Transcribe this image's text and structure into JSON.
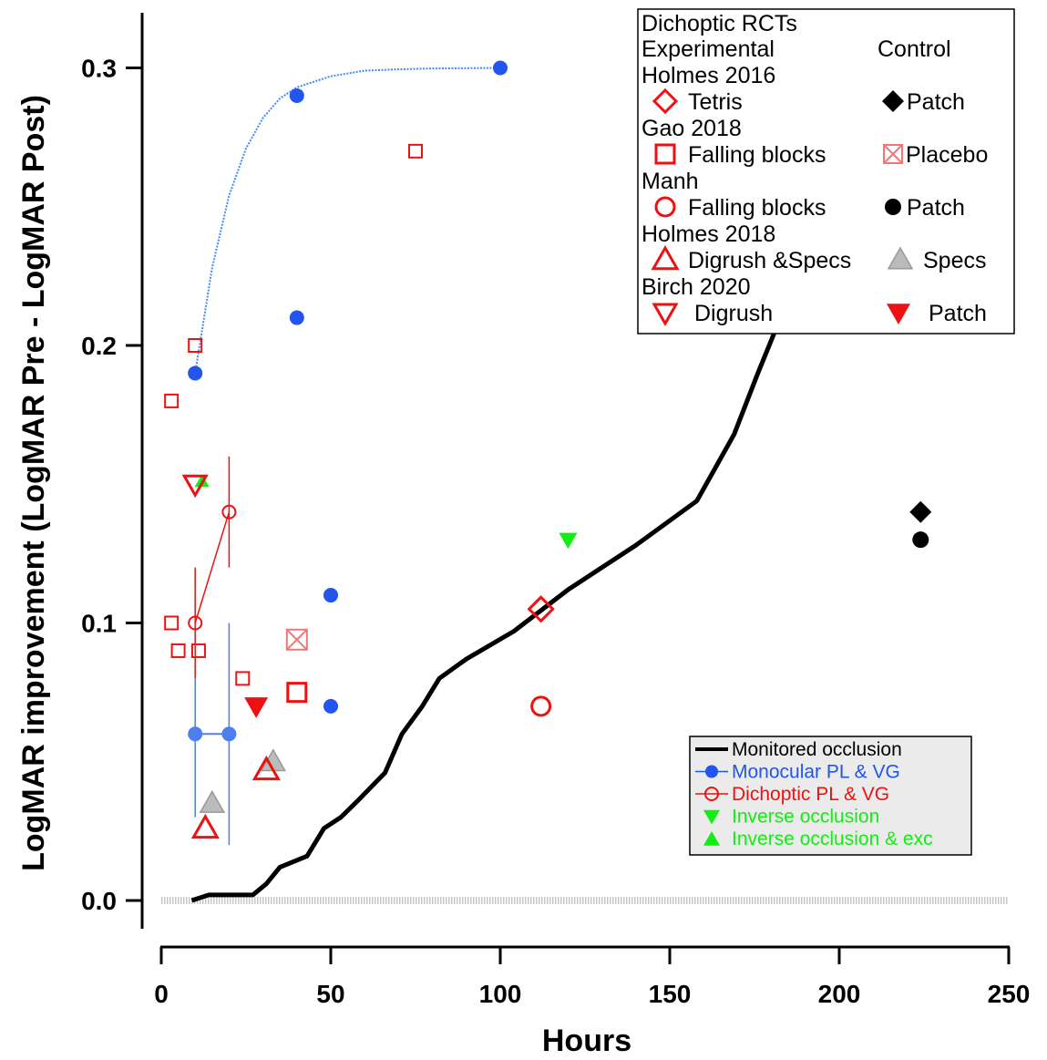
{
  "chart_data": {
    "type": "scatter",
    "xlabel": "Hours",
    "ylabel": "LogMAR improvement (LogMAR Pre - LogMAR Post)",
    "xlim": [
      0,
      250
    ],
    "ylim": [
      -0.01,
      0.32
    ],
    "x_ticks": [
      "0",
      "50",
      "100",
      "150",
      "200",
      "250"
    ],
    "x_tick_values": [
      0,
      50,
      100,
      150,
      200,
      250
    ],
    "y_ticks": [
      "0.0",
      "0.1",
      "0.2",
      "0.3"
    ],
    "y_tick_values": [
      0.0,
      0.1,
      0.2,
      0.3
    ],
    "colors": {
      "red": "#ee1111",
      "blue": "#2255ee",
      "pale_blue": "#4d7ef0",
      "green": "#11ee11",
      "gray": "#bbbbbb",
      "pink": "#ee7777",
      "black": "#000000",
      "light_blue_line": "#4488ff"
    },
    "legend_rct": {
      "title": "Dichoptic RCTs",
      "col_experimental": "Experimental",
      "col_control": "Control",
      "groups": [
        {
          "study": "Holmes 2016",
          "experimental": "Tetris",
          "control": "Patch"
        },
        {
          "study": "Gao 2018",
          "experimental": "Falling blocks",
          "control": "Placebo"
        },
        {
          "study": "Manh",
          "experimental": "Falling blocks",
          "control": "Patch"
        },
        {
          "study": "Holmes 2018",
          "experimental": "Digrush &Specs",
          "control": "Specs"
        },
        {
          "study": "Birch 2020",
          "experimental": "Digrush",
          "control": "Patch"
        }
      ]
    },
    "legend_methods": [
      {
        "label": "Monitored occlusion",
        "color": "#000000"
      },
      {
        "label": "Monocular PL & VG",
        "color": "#2255ee"
      },
      {
        "label": "Dichoptic   PL & VG",
        "color": "#ee1111"
      },
      {
        "label": "Inverse occlusion",
        "color": "#11ee11"
      },
      {
        "label": "Inverse occlusion & exc",
        "color": "#11ee11"
      }
    ],
    "series": [
      {
        "name": "Monitored occlusion",
        "kind": "line",
        "points": [
          [
            9,
            0.0
          ],
          [
            14,
            0.002
          ],
          [
            27,
            0.002
          ],
          [
            31,
            0.006
          ],
          [
            35,
            0.012
          ],
          [
            43,
            0.016
          ],
          [
            48,
            0.026
          ],
          [
            53,
            0.03
          ],
          [
            58,
            0.036
          ],
          [
            66,
            0.046
          ],
          [
            71,
            0.06
          ],
          [
            77,
            0.07
          ],
          [
            82,
            0.08
          ],
          [
            90,
            0.087
          ],
          [
            104,
            0.097
          ],
          [
            120,
            0.112
          ],
          [
            140,
            0.128
          ],
          [
            158,
            0.144
          ],
          [
            169,
            0.168
          ],
          [
            176,
            0.19
          ],
          [
            182,
            0.208
          ],
          [
            186,
            0.212
          ]
        ]
      },
      {
        "name": "Monocular PL & VG",
        "kind": "points",
        "points": [
          [
            10,
            0.19
          ],
          [
            40,
            0.29
          ],
          [
            40,
            0.21
          ],
          [
            100,
            0.3
          ],
          [
            50,
            0.11
          ],
          [
            50,
            0.07
          ]
        ]
      },
      {
        "name": "Monocular fit curve",
        "kind": "curve",
        "points": [
          [
            10,
            0.19
          ],
          [
            15,
            0.228
          ],
          [
            20,
            0.254
          ],
          [
            25,
            0.271
          ],
          [
            30,
            0.282
          ],
          [
            35,
            0.289
          ],
          [
            40,
            0.293
          ],
          [
            50,
            0.297
          ],
          [
            60,
            0.299
          ],
          [
            70,
            0.2995
          ],
          [
            80,
            0.2998
          ],
          [
            100,
            0.3
          ]
        ]
      },
      {
        "name": "Monocular PL & VG mean",
        "kind": "errorpair",
        "points": [
          [
            10,
            0.06
          ],
          [
            20,
            0.06
          ]
        ],
        "yerr": [
          [
            0.03,
            0.08
          ],
          [
            0.02,
            0.1
          ]
        ]
      },
      {
        "name": "Dichoptic PL & VG",
        "kind": "points",
        "points": [
          [
            3,
            0.18
          ],
          [
            10,
            0.2
          ],
          [
            3,
            0.1
          ],
          [
            5,
            0.09
          ],
          [
            11,
            0.09
          ],
          [
            24,
            0.08
          ],
          [
            75,
            0.27
          ]
        ]
      },
      {
        "name": "Dichoptic PL & VG mean",
        "kind": "errorpair",
        "points": [
          [
            10,
            0.1
          ],
          [
            20,
            0.14
          ]
        ],
        "yerr": [
          [
            0.08,
            0.12
          ],
          [
            0.12,
            0.16
          ]
        ]
      },
      {
        "name": "Inverse occlusion",
        "kind": "points",
        "points": [
          [
            120,
            0.13
          ]
        ]
      },
      {
        "name": "Inverse occlusion & exc",
        "kind": "points",
        "points": [
          [
            12,
            0.151
          ]
        ]
      },
      {
        "name": "Tetris",
        "kind": "points",
        "points": [
          [
            112,
            0.105
          ]
        ]
      },
      {
        "name": "Patch (Holmes 2016)",
        "kind": "points",
        "points": [
          [
            224,
            0.14
          ]
        ]
      },
      {
        "name": "Falling blocks (Gao 2018)",
        "kind": "points",
        "points": [
          [
            40,
            0.075
          ]
        ]
      },
      {
        "name": "Placebo",
        "kind": "points",
        "points": [
          [
            40,
            0.094
          ]
        ]
      },
      {
        "name": "Falling blocks (Manh)",
        "kind": "points",
        "points": [
          [
            112,
            0.07
          ]
        ]
      },
      {
        "name": "Patch (Manh)",
        "kind": "points",
        "points": [
          [
            224,
            0.13
          ]
        ]
      },
      {
        "name": "Digrush &Specs",
        "kind": "points",
        "points": [
          [
            13,
            0.026
          ],
          [
            31,
            0.047
          ]
        ]
      },
      {
        "name": "Specs",
        "kind": "points",
        "points": [
          [
            15,
            0.035
          ],
          [
            33,
            0.05
          ]
        ]
      },
      {
        "name": "Digrush",
        "kind": "points",
        "points": [
          [
            10,
            0.15
          ]
        ]
      },
      {
        "name": "Patch (Birch 2020)",
        "kind": "points",
        "points": [
          [
            28,
            0.07
          ]
        ]
      }
    ]
  }
}
